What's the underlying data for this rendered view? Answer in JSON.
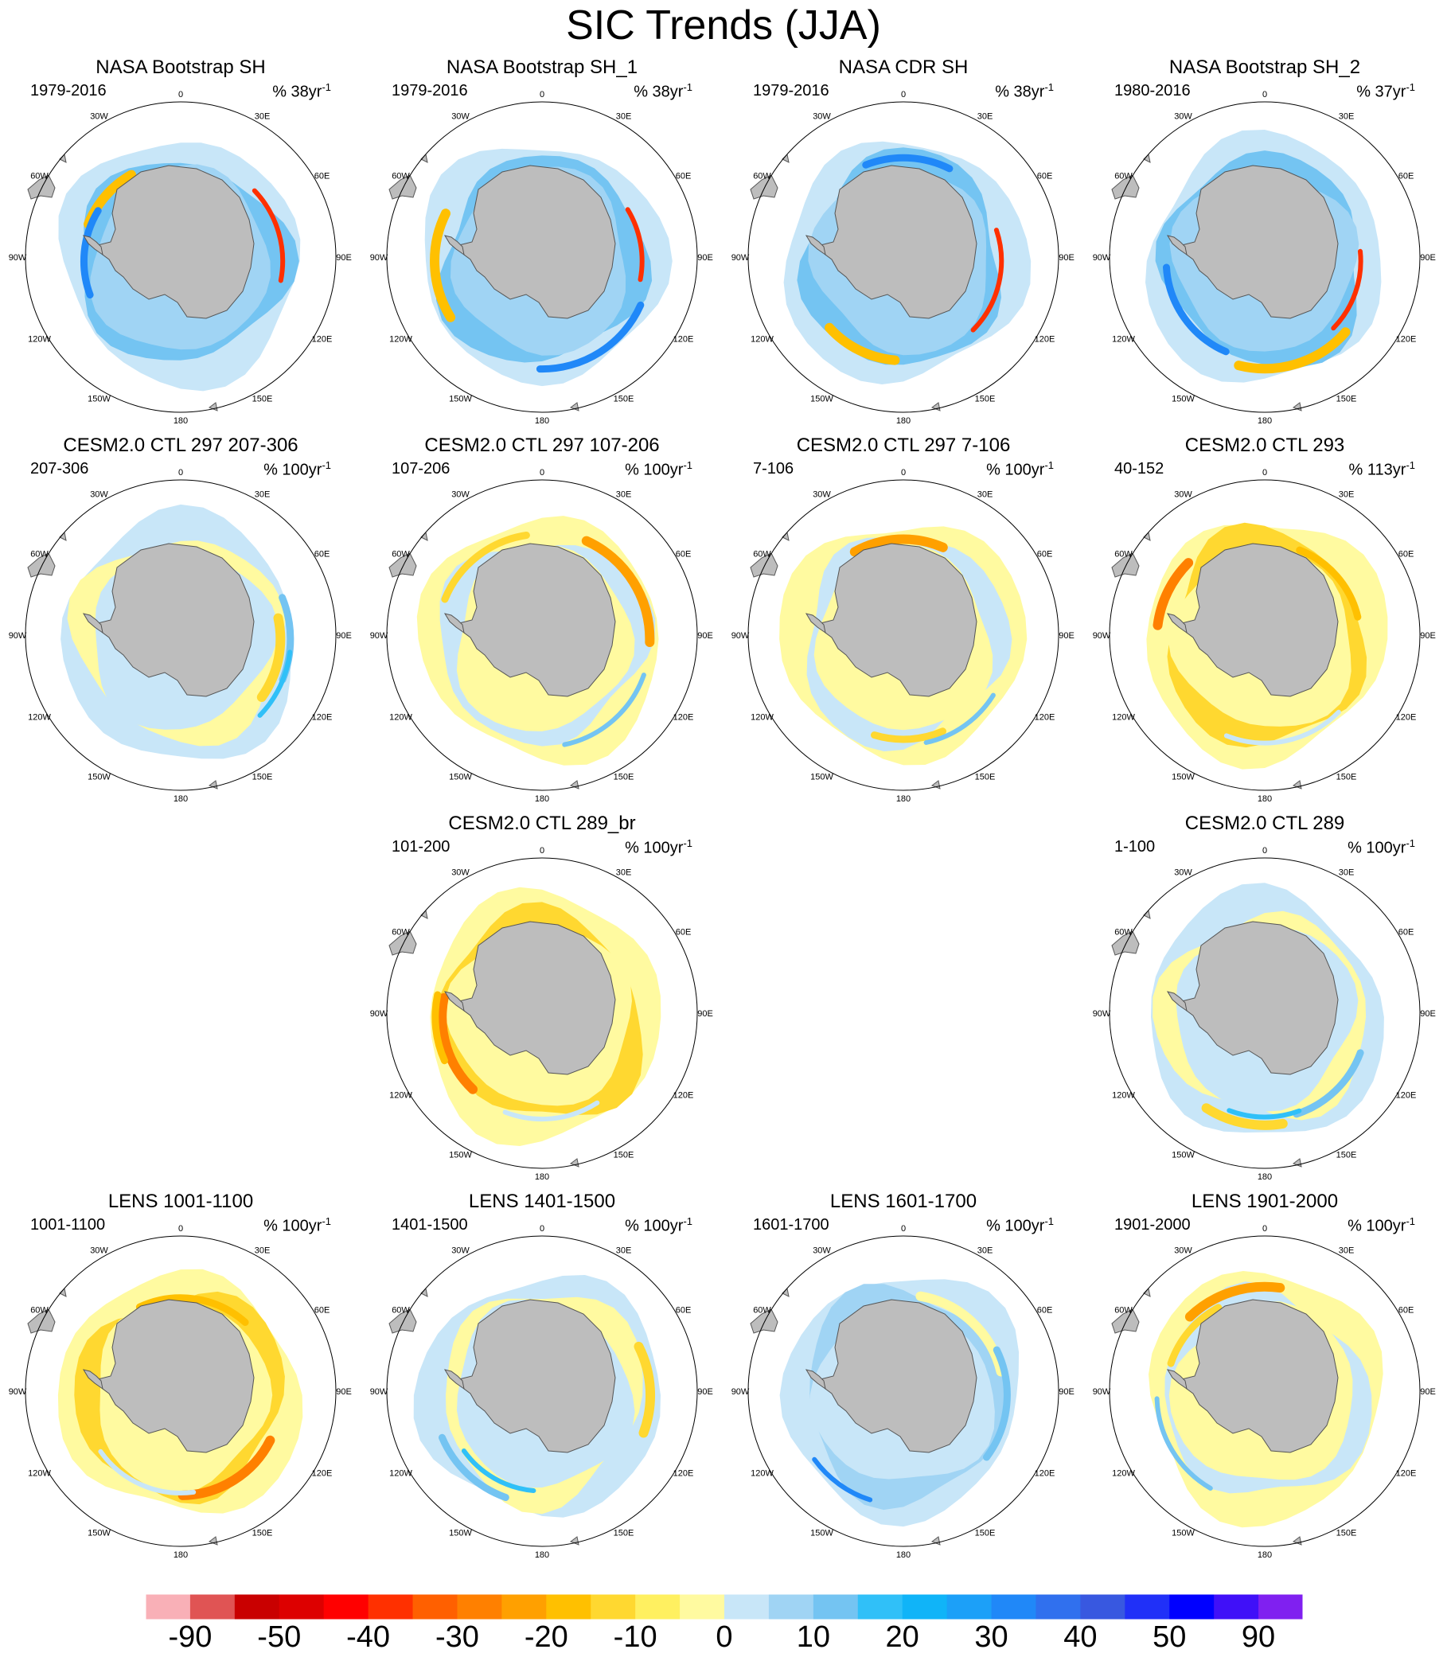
{
  "title": "SIC Trends (JJA)",
  "colorbar": {
    "colors": [
      "#f9b0b7",
      "#e05454",
      "#c90000",
      "#dd0000",
      "#ff0000",
      "#ff3000",
      "#ff6000",
      "#ff8000",
      "#ffa000",
      "#ffc000",
      "#ffd830",
      "#fff060",
      "#fffaa0",
      "#c8e6f8",
      "#a0d4f4",
      "#74c4f2",
      "#30c0f8",
      "#10b4f8",
      "#1ca0f8",
      "#2088f8",
      "#3070ee",
      "#3858e0",
      "#2030f8",
      "#0000ff",
      "#4010f8",
      "#8020f0"
    ],
    "labels": [
      "-90",
      "-50",
      "-40",
      "-30",
      "-20",
      "-10",
      "0",
      "10",
      "20",
      "30",
      "40",
      "50",
      "90"
    ]
  },
  "longitude_labels": [
    "0",
    "30E",
    "60E",
    "90E",
    "120E",
    "150E",
    "180",
    "150W",
    "120W",
    "90W",
    "60W",
    "30W"
  ],
  "panels": [
    {
      "title": "NASA Bootstrap SH",
      "years": "1979-2016",
      "units": "% 38yr",
      "exp": "-1",
      "style": "obs",
      "seed": 1
    },
    {
      "title": "NASA Bootstrap SH_1",
      "years": "1979-2016",
      "units": "% 38yr",
      "exp": "-1",
      "style": "obs",
      "seed": 2
    },
    {
      "title": "NASA CDR SH",
      "years": "1979-2016",
      "units": "% 38yr",
      "exp": "-1",
      "style": "obs",
      "seed": 3
    },
    {
      "title": "NASA Bootstrap SH_2",
      "years": "1980-2016",
      "units": "% 37yr",
      "exp": "-1",
      "style": "obs",
      "seed": 4
    },
    {
      "title": "CESM2.0 CTL 297 207-306",
      "years": "207-306",
      "units": "% 100yr",
      "exp": "-1",
      "style": "mixedBlue",
      "seed": 5
    },
    {
      "title": "CESM2.0 CTL 297 107-206",
      "years": "107-206",
      "units": "% 100yr",
      "exp": "-1",
      "style": "mixedYellow",
      "seed": 6
    },
    {
      "title": "CESM2.0 CTL 297 7-106",
      "years": "7-106",
      "units": "% 100yr",
      "exp": "-1",
      "style": "mixedYellow",
      "seed": 7
    },
    {
      "title": "CESM2.0 CTL 293",
      "years": "40-152",
      "units": "% 113yr",
      "exp": "-1",
      "style": "yellow",
      "seed": 8
    },
    {
      "title": "CESM2.0 CTL 289_br",
      "years": "101-200",
      "units": "% 100yr",
      "exp": "-1",
      "style": "yellow",
      "seed": 9
    },
    {
      "title": "CESM2.0 CTL 289",
      "years": "1-100",
      "units": "% 100yr",
      "exp": "-1",
      "style": "mixedBlue",
      "seed": 10
    },
    {
      "title": "LENS 1001-1100",
      "years": "1001-1100",
      "units": "% 100yr",
      "exp": "-1",
      "style": "yellow",
      "seed": 11
    },
    {
      "title": "LENS 1401-1500",
      "years": "1401-1500",
      "units": "% 100yr",
      "exp": "-1",
      "style": "mixedBlue",
      "seed": 12
    },
    {
      "title": "LENS 1601-1700",
      "years": "1601-1700",
      "units": "% 100yr",
      "exp": "-1",
      "style": "blue",
      "seed": 13
    },
    {
      "title": "LENS 1901-2000",
      "years": "1901-2000",
      "units": "% 100yr",
      "exp": "-1",
      "style": "mixedYellow",
      "seed": 14
    }
  ]
}
